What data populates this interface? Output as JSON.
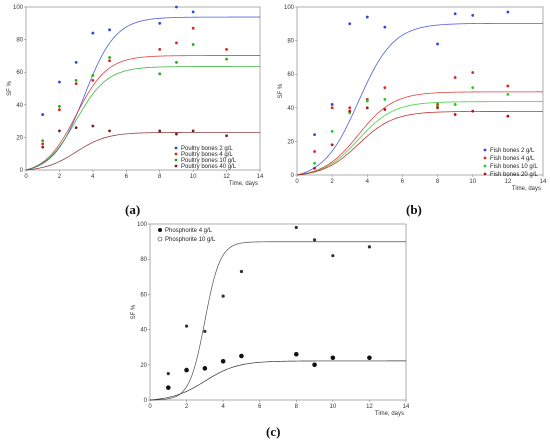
{
  "panels_caption": [
    "(a)",
    "(b)",
    "(c)"
  ],
  "chart_data": [
    {
      "type": "scatter",
      "id": "a",
      "xlabel": "Time, days",
      "ylabel": "SF %",
      "xlim": [
        0,
        14
      ],
      "ylim": [
        0,
        100
      ],
      "xticks": [
        0,
        2,
        4,
        6,
        8,
        10,
        12,
        14
      ],
      "yticks": [
        0,
        20,
        40,
        60,
        80,
        100
      ],
      "legend": "bottom-right",
      "series": [
        {
          "name": "Poultry bones 2 g/L",
          "color": "#3344dd",
          "x": [
            1,
            2,
            3,
            4,
            5,
            8,
            9,
            10
          ],
          "y": [
            34,
            54,
            66,
            84,
            86,
            90,
            100,
            97
          ],
          "curve": [
            96,
            3.5,
            0.93
          ]
        },
        {
          "name": "Poultry bones 4 g/L",
          "color": "#dd2222",
          "x": [
            1,
            2,
            3,
            4,
            5,
            8,
            9,
            10,
            12
          ],
          "y": [
            16,
            37,
            53,
            55,
            67,
            74,
            78,
            87,
            74
          ],
          "curve": [
            73,
            3.0,
            0.93
          ]
        },
        {
          "name": "Poultry bones 10 g/L",
          "color": "#22aa22",
          "x": [
            1,
            2,
            3,
            4,
            5,
            8,
            9,
            10,
            12
          ],
          "y": [
            18,
            39,
            55,
            58,
            69,
            59,
            66,
            77,
            68
          ],
          "curve": [
            66,
            3.0,
            0.93
          ]
        },
        {
          "name": "Poultry bones 40 g/L",
          "color": "#772222",
          "x": [
            1,
            2,
            3,
            4,
            5,
            8,
            9,
            10,
            12
          ],
          "y": [
            14,
            24,
            26,
            27,
            24,
            24,
            22,
            24,
            21
          ],
          "curve": [
            24,
            3.0,
            0.93
          ]
        }
      ]
    },
    {
      "type": "scatter",
      "id": "b",
      "xlabel": "Time, days",
      "ylabel": "SF %",
      "xlim": [
        0,
        14
      ],
      "ylim": [
        0,
        100
      ],
      "xticks": [
        0,
        2,
        4,
        6,
        8,
        10,
        12,
        14
      ],
      "yticks": [
        0,
        20,
        40,
        60,
        80,
        100
      ],
      "legend": "bottom-right",
      "series": [
        {
          "name": "Fish bones 2 g/L",
          "color": "#3344dd",
          "x": [
            1,
            2,
            3,
            4,
            5,
            8,
            9,
            10,
            12
          ],
          "y": [
            24,
            42,
            90,
            94,
            88,
            78,
            96,
            95,
            97
          ],
          "curve": [
            93,
            3.5,
            1.0
          ]
        },
        {
          "name": "Fish bones 4 g/L",
          "color": "#dd2222",
          "x": [
            1,
            2,
            3,
            4,
            5,
            8,
            9,
            10,
            12
          ],
          "y": [
            14,
            40,
            40,
            45,
            52,
            42,
            58,
            61,
            53
          ],
          "curve": [
            51,
            3.5,
            1.0
          ]
        },
        {
          "name": "Fish bones 10 g/L",
          "color": "#22cc22",
          "x": [
            1,
            2,
            3,
            4,
            5,
            8,
            9,
            10,
            12
          ],
          "y": [
            7,
            26,
            37,
            44,
            45,
            41,
            42,
            52,
            48
          ],
          "curve": [
            45,
            3.5,
            1.0
          ]
        },
        {
          "name": "Fish bones 20 g/L",
          "color": "#bb1111",
          "x": [
            1,
            2,
            3,
            4,
            5,
            8,
            9,
            10,
            12
          ],
          "y": [
            4,
            18,
            38,
            40,
            39,
            40,
            36,
            38,
            35
          ],
          "curve": [
            39,
            3.5,
            1.0
          ]
        }
      ]
    },
    {
      "type": "scatter",
      "id": "c",
      "xlabel": "Time, days",
      "ylabel": "SF %",
      "xlim": [
        0,
        14
      ],
      "ylim": [
        0,
        100
      ],
      "xticks": [
        0,
        2,
        4,
        6,
        8,
        10,
        12,
        14
      ],
      "yticks": [
        0,
        20,
        40,
        60,
        80,
        100
      ],
      "legend": "top-left",
      "series": [
        {
          "name": "Phosphorite 4 g/L",
          "color": "#111111",
          "marker": "filled",
          "x": [
            1,
            2,
            3,
            4,
            5,
            8,
            9,
            10,
            12
          ],
          "y": [
            7,
            17,
            18,
            22,
            25,
            26,
            20,
            24,
            24
          ],
          "curve": [
            23,
            3.0,
            0.9
          ]
        },
        {
          "name": "Phosphorite 10 g/L",
          "color": "#333333",
          "marker": "open",
          "x": [
            1,
            2,
            3,
            4,
            5,
            8,
            9,
            10,
            12
          ],
          "y": [
            15,
            42,
            39,
            59,
            73,
            98,
            91,
            82,
            87
          ],
          "curve": [
            90,
            3.0,
            0.42
          ]
        }
      ]
    }
  ]
}
